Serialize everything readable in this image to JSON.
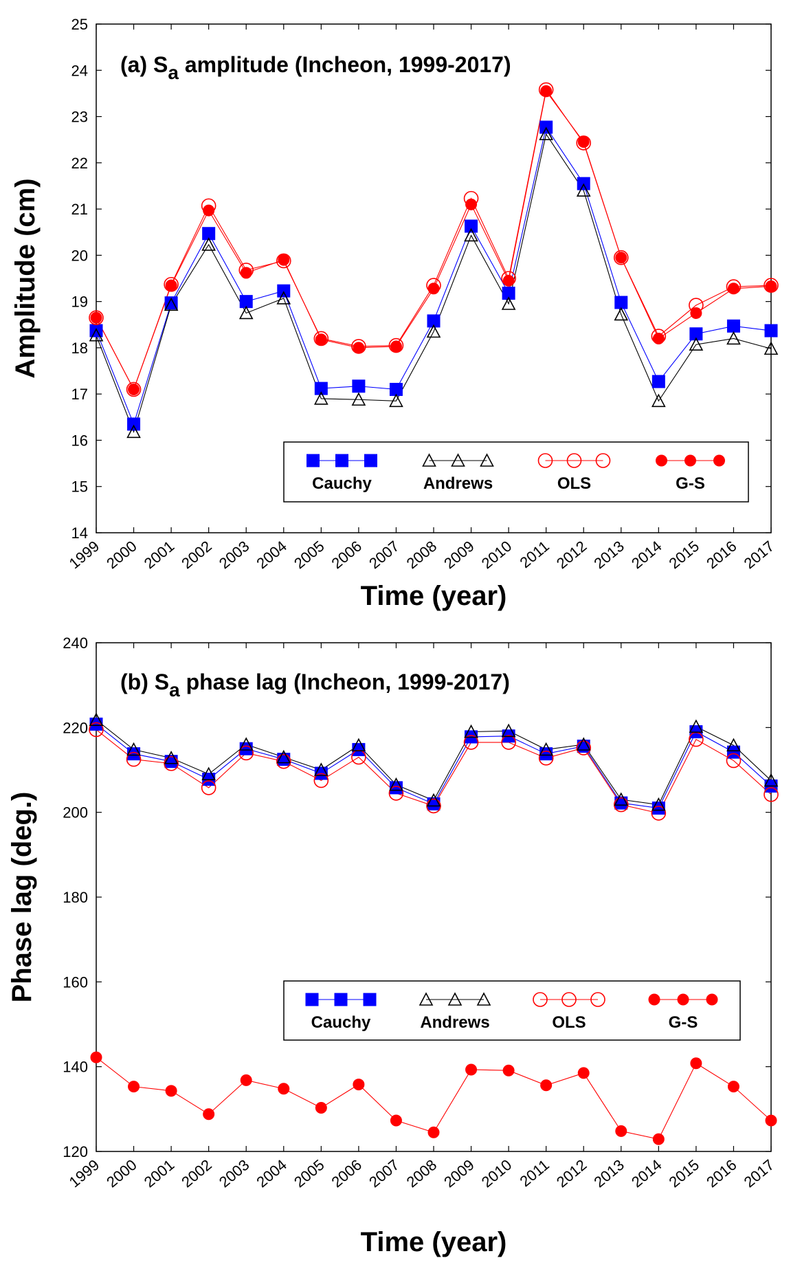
{
  "chart_data": [
    {
      "type": "line",
      "title": "(a) S_a amplitude (Incheon, 1999-2017)",
      "title_parts": {
        "pre": "(a) S",
        "sub": "a",
        "post": " amplitude (Incheon, 1999-2017)"
      },
      "xlabel": "Time (year)",
      "ylabel": "Amplitude (cm)",
      "categories": [
        "1999",
        "2000",
        "2001",
        "2002",
        "2003",
        "2004",
        "2005",
        "2006",
        "2007",
        "2008",
        "2009",
        "2010",
        "2011",
        "2012",
        "2013",
        "2014",
        "2015",
        "2016",
        "2017"
      ],
      "ylim": [
        14,
        25
      ],
      "yticks": [
        14,
        15,
        16,
        17,
        18,
        19,
        20,
        21,
        22,
        23,
        24,
        25
      ],
      "legend_position": "lower-right",
      "series": [
        {
          "name": "Cauchy",
          "marker": "filled-square",
          "color": "#0000ff",
          "values": [
            18.37,
            16.35,
            18.97,
            20.47,
            19.0,
            19.23,
            17.12,
            17.17,
            17.1,
            18.58,
            20.63,
            19.18,
            22.77,
            21.55,
            18.98,
            17.27,
            18.3,
            18.47,
            18.37
          ]
        },
        {
          "name": "Andrews",
          "marker": "open-triangle",
          "color": "#000000",
          "values": [
            18.27,
            16.18,
            18.93,
            20.23,
            18.75,
            19.07,
            16.9,
            16.88,
            16.85,
            18.35,
            20.43,
            18.95,
            22.62,
            21.4,
            18.72,
            16.85,
            18.07,
            18.2,
            17.98
          ]
        },
        {
          "name": "OLS",
          "marker": "open-circle",
          "color": "#ff0000",
          "values": [
            18.65,
            17.1,
            19.37,
            21.07,
            19.68,
            19.88,
            18.2,
            18.03,
            18.05,
            19.35,
            21.23,
            19.5,
            23.58,
            22.43,
            19.95,
            18.25,
            18.92,
            19.32,
            19.35
          ]
        },
        {
          "name": "G-S",
          "marker": "filled-circle",
          "color": "#ff0000",
          "values": [
            18.65,
            17.1,
            19.35,
            20.97,
            19.62,
            19.9,
            18.18,
            18.0,
            18.03,
            19.28,
            21.1,
            19.45,
            23.55,
            22.45,
            19.95,
            18.2,
            18.75,
            19.28,
            19.33
          ]
        }
      ]
    },
    {
      "type": "line",
      "title": "(b) S_a phase lag (Incheon, 1999-2017)",
      "title_parts": {
        "pre": "(b) S",
        "sub": "a",
        "post": " phase lag (Incheon, 1999-2017)"
      },
      "xlabel": "Time (year)",
      "ylabel": "Phase lag (deg.)",
      "categories": [
        "1999",
        "2000",
        "2001",
        "2002",
        "2003",
        "2004",
        "2005",
        "2006",
        "2007",
        "2008",
        "2009",
        "2010",
        "2011",
        "2012",
        "2013",
        "2014",
        "2015",
        "2016",
        "2017"
      ],
      "ylim": [
        120,
        240
      ],
      "yticks": [
        120,
        140,
        160,
        180,
        200,
        220,
        240
      ],
      "legend_position": "center-right",
      "series": [
        {
          "name": "Cauchy",
          "marker": "filled-square",
          "color": "#0000ff",
          "values": [
            220.8,
            213.8,
            212.0,
            207.8,
            215.0,
            212.5,
            209.2,
            214.8,
            205.8,
            202.0,
            217.8,
            218.0,
            213.8,
            215.6,
            202.2,
            201.0,
            219.0,
            214.2,
            206.2
          ]
        },
        {
          "name": "Andrews",
          "marker": "open-triangle",
          "color": "#000000",
          "values": [
            221.8,
            214.8,
            212.8,
            209.0,
            216.0,
            213.0,
            210.0,
            215.8,
            206.5,
            202.8,
            219.0,
            219.2,
            214.8,
            216.0,
            203.0,
            201.8,
            220.2,
            215.8,
            207.5
          ]
        },
        {
          "name": "OLS",
          "marker": "open-circle",
          "color": "#ff0000",
          "values": [
            219.5,
            212.5,
            211.5,
            205.8,
            214.0,
            212.0,
            207.5,
            213.0,
            204.5,
            201.5,
            216.5,
            216.5,
            212.8,
            215.2,
            201.8,
            199.8,
            217.2,
            212.2,
            204.2
          ]
        },
        {
          "name": "G-S",
          "marker": "filled-circle",
          "color": "#ff0000",
          "values": [
            142.2,
            135.3,
            134.3,
            128.8,
            136.8,
            134.8,
            130.3,
            135.8,
            127.3,
            124.5,
            139.3,
            139.1,
            135.6,
            138.5,
            124.8,
            122.9,
            140.8,
            135.3,
            127.3
          ]
        }
      ]
    }
  ]
}
